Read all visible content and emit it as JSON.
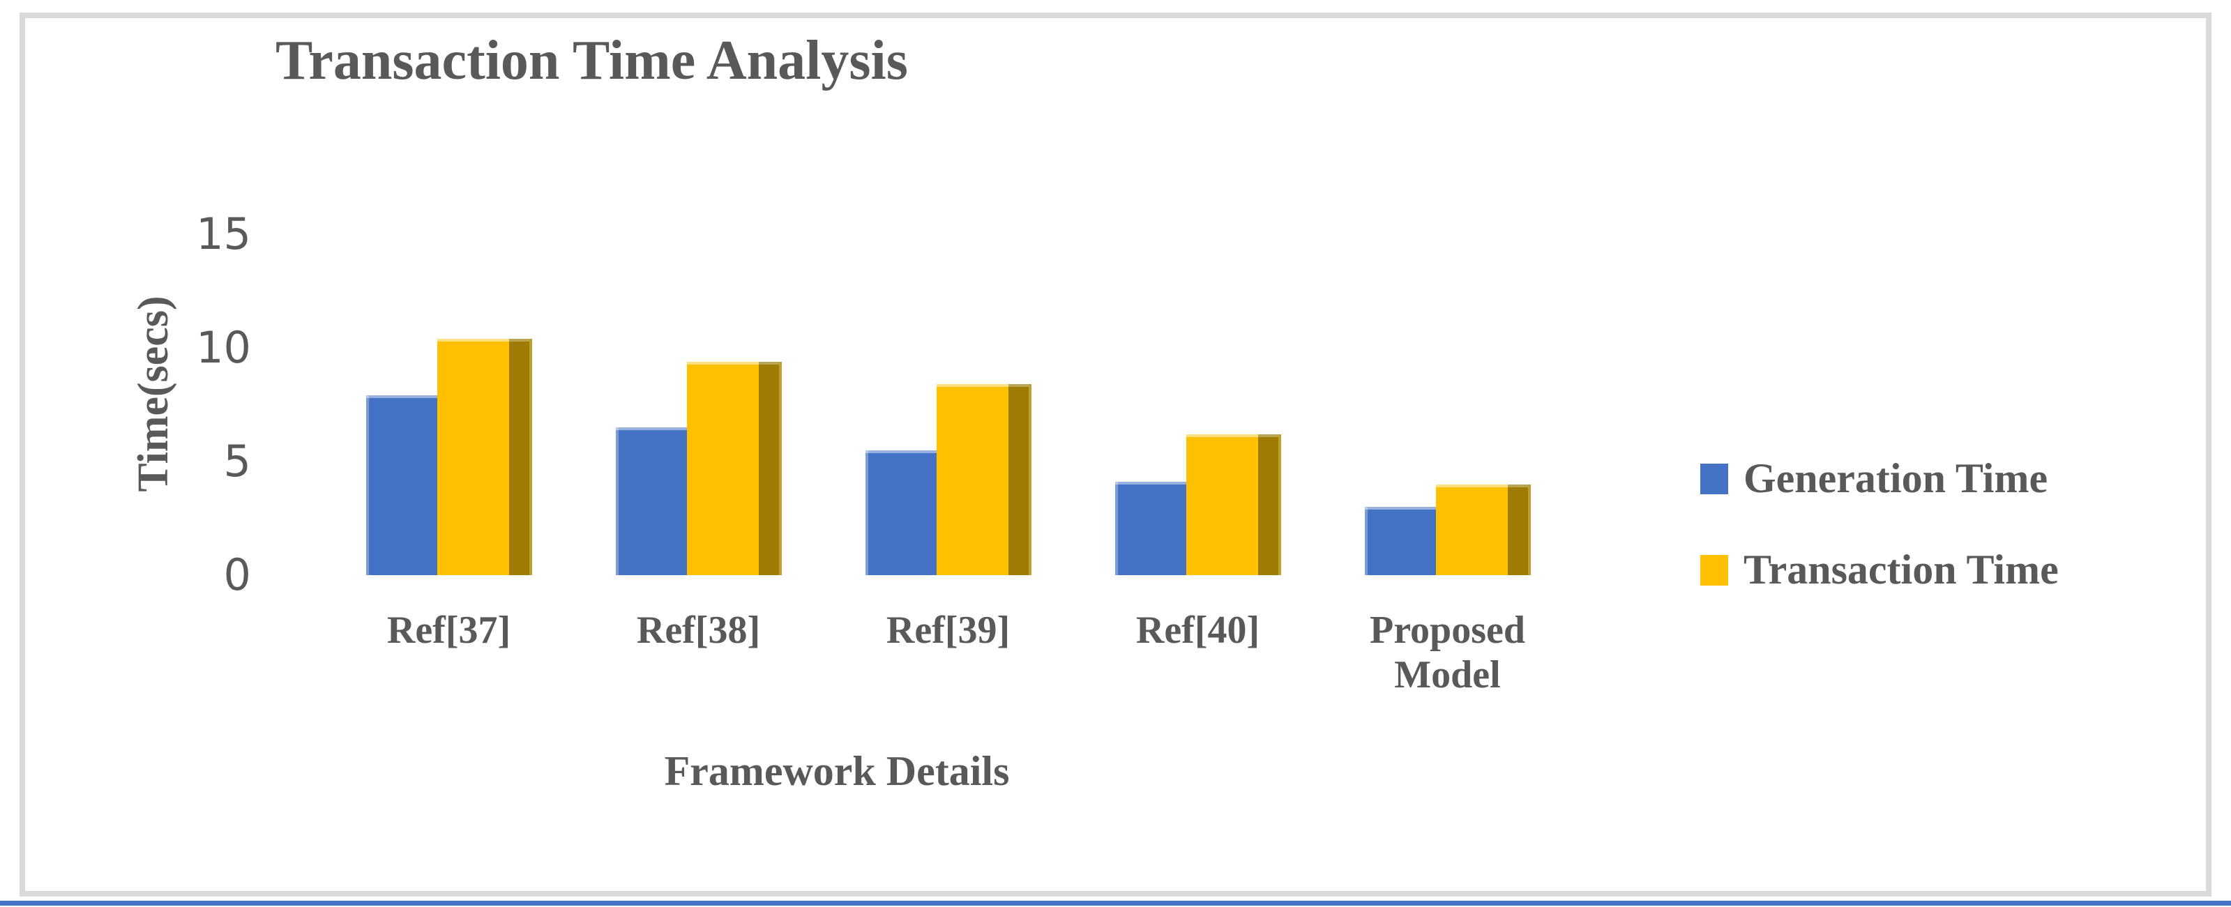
{
  "chart_data": {
    "type": "bar",
    "title": "Transaction Time Analysis",
    "xlabel": "Framework Details",
    "ylabel": "Time(secs)",
    "categories": [
      "Ref[37]",
      "Ref[38]",
      "Ref[39]",
      "Ref[40]",
      "Proposed Model"
    ],
    "series": [
      {
        "name": "Generation Time",
        "color": "#4472C4",
        "values": [
          7.9,
          6.5,
          5.5,
          4.1,
          3.0
        ]
      },
      {
        "name": "Transaction Time",
        "color": "#FFC000",
        "side_color": "#9E7B04",
        "side_edge_color": "#BFA030",
        "values": [
          10.4,
          9.4,
          8.4,
          6.2,
          4.0
        ]
      }
    ],
    "yticks": [
      15,
      10,
      5,
      0
    ],
    "ylim": [
      0,
      15
    ],
    "grid": false,
    "legend_position": "right"
  },
  "colors": {
    "text": "#595959",
    "frame_border": "#D9D9D9",
    "bottom_line": "#4472C4"
  }
}
